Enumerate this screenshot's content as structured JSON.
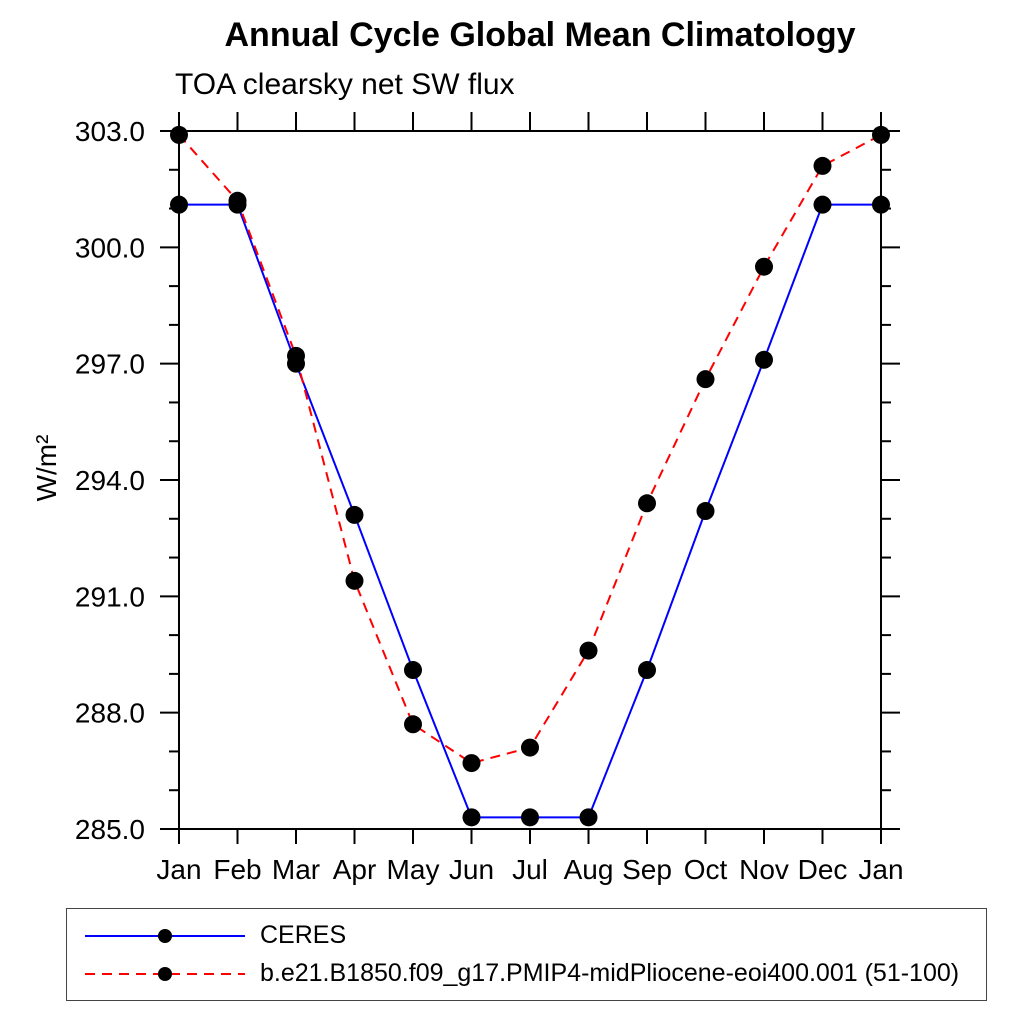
{
  "header": {
    "title": "Annual Cycle Global Mean Climatology",
    "subtitle": "TOA clearsky net SW flux"
  },
  "chart_data": {
    "type": "line",
    "title": "Annual Cycle Global Mean Climatology",
    "subtitle": "TOA clearsky net SW flux",
    "xlabel": "",
    "ylabel": "W/m²",
    "x_categories": [
      "Jan",
      "Feb",
      "Mar",
      "Apr",
      "May",
      "Jun",
      "Jul",
      "Aug",
      "Sep",
      "Oct",
      "Nov",
      "Dec",
      "Jan"
    ],
    "ylim": [
      285.0,
      303.0
    ],
    "ytick_major_interval": 3.0,
    "ytick_minor_interval": 1.0,
    "ytick_labels": [
      "285.0",
      "288.0",
      "291.0",
      "294.0",
      "297.0",
      "300.0",
      "303.0"
    ],
    "grid": false,
    "legend_position": "bottom",
    "frame_color": "#000000",
    "marker_color": "#000000",
    "series": [
      {
        "name": "CERES",
        "color": "#0000ff",
        "style": "solid",
        "marker": "filled-circle",
        "values": [
          301.1,
          301.1,
          297.0,
          293.1,
          289.1,
          285.3,
          285.3,
          285.3,
          289.1,
          293.2,
          297.1,
          301.1,
          301.1
        ]
      },
      {
        "name": "b.e21.B1850.f09_g17.PMIP4-midPliocene-eoi400.001 (51-100)",
        "color": "#ff0000",
        "style": "dashed",
        "marker": "filled-circle",
        "values": [
          302.9,
          301.2,
          297.2,
          291.4,
          287.7,
          286.7,
          287.1,
          289.6,
          293.4,
          296.6,
          299.5,
          302.1,
          302.9
        ]
      }
    ]
  }
}
